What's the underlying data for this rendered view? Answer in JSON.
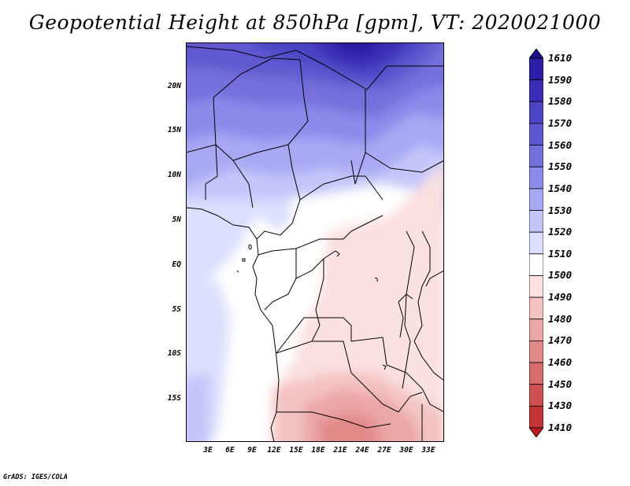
{
  "title": "Geopotential Height at 850hPa [gpm], VT: 2020021000",
  "footer": "GrADS: IGES/COLA",
  "lat_ticks": [
    "20N",
    "15N",
    "10N",
    "5N",
    "EQ",
    "5S",
    "10S",
    "15S"
  ],
  "lon_ticks": [
    "3E",
    "6E",
    "9E",
    "12E",
    "15E",
    "18E",
    "21E",
    "24E",
    "27E",
    "30E",
    "33E"
  ],
  "colorbar": {
    "labels": [
      "1610",
      "1590",
      "1580",
      "1570",
      "1560",
      "1550",
      "1540",
      "1530",
      "1520",
      "1510",
      "1500",
      "1490",
      "1480",
      "1470",
      "1460",
      "1450",
      "1430",
      "1410"
    ],
    "colors": [
      "#1c1088",
      "#2a1ea6",
      "#3a2eb6",
      "#4c44c4",
      "#5e58d0",
      "#7470dc",
      "#8c8aea",
      "#a8a8f4",
      "#c4c6fa",
      "#dcdffd",
      "#ffffff",
      "#fbe0e0",
      "#f4c2c2",
      "#eba6a6",
      "#e28a8a",
      "#d86c6c",
      "#cf5050",
      "#c43434",
      "#b81c1c"
    ]
  },
  "map_data": {
    "region": "Central/Southern Africa",
    "variable": "Geopotential Height at 850hPa",
    "units": "gpm",
    "valid_time": "2020021000",
    "extent_lon": [
      0,
      35
    ],
    "extent_lat": [
      -20,
      24
    ]
  }
}
